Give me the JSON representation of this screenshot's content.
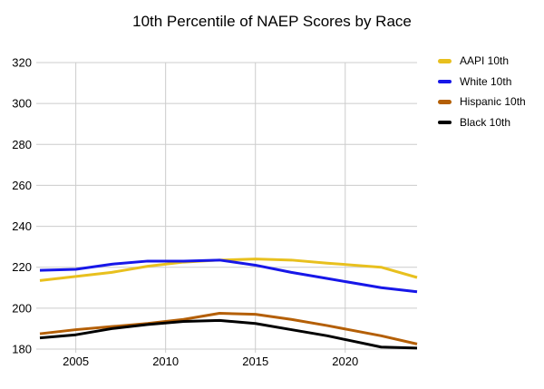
{
  "chart_data": {
    "type": "line",
    "title": "10th Percentile of NAEP Scores by Race",
    "xlabel": "",
    "ylabel": "",
    "x": [
      2003,
      2005,
      2007,
      2009,
      2011,
      2013,
      2015,
      2017,
      2019,
      2022,
      2024
    ],
    "series": [
      {
        "name": "AAPI 10th",
        "color": "#E8C01E",
        "values": [
          213.5,
          215.5,
          217.5,
          220.5,
          222.5,
          223.5,
          224,
          223.5,
          222,
          220,
          215
        ]
      },
      {
        "name": "White 10th",
        "color": "#1717E8",
        "values": [
          218.5,
          219,
          221.5,
          223,
          223,
          223.5,
          221,
          217.5,
          214.5,
          210,
          208
        ]
      },
      {
        "name": "Hispanic 10th",
        "color": "#B45F06",
        "values": [
          187.5,
          189.5,
          191,
          192.5,
          194.5,
          197.5,
          197,
          194.5,
          191.5,
          186.5,
          182.5
        ]
      },
      {
        "name": "Black 10th",
        "color": "#000000",
        "values": [
          185.5,
          187,
          190,
          192,
          193.5,
          194,
          192.5,
          189.5,
          186.5,
          181,
          180.5
        ]
      }
    ],
    "x_ticks": [
      2005,
      2010,
      2015,
      2020
    ],
    "y_ticks": [
      180,
      200,
      220,
      240,
      260,
      280,
      300,
      320
    ],
    "xlim": [
      2003,
      2024
    ],
    "ylim": [
      180,
      320
    ],
    "grid": true,
    "legend_position": "right",
    "colors": {
      "grid": "#CCCCCC",
      "tick_text": "#000000",
      "background": "#FFFFFF"
    }
  }
}
